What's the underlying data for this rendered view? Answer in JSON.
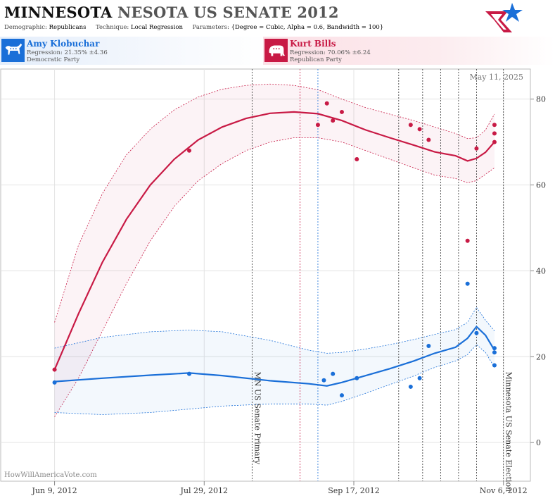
{
  "header": {
    "title_part1": "MINNESOTA",
    "title_part2": "NESOTA US SENATE 2012",
    "demographic_label": "Demographic:",
    "demographic_value": "Republicans",
    "technique_label": "Technique:",
    "technique_value": "Local Regression",
    "parameters_label": "Parameters:",
    "parameters_value": "{Degree = Cubic, Alpha = 0.6, Bandwidth = 100}"
  },
  "candidates": [
    {
      "name": "Amy Klobuchar",
      "regression": "Regression: 21.35% ±4.36",
      "party": "Democratic Party",
      "color": "#1a6fd8",
      "icon": "donkey-icon"
    },
    {
      "name": "Kurt Bills",
      "regression": "Regression: 70.06% ±6.24",
      "party": "Republican Party",
      "color": "#c81a45",
      "icon": "elephant-icon"
    }
  ],
  "watermark": "HowWillAmericaVote.com",
  "chart_data": {
    "type": "line",
    "date_label": "May 11, 2025",
    "x_range": [
      "2012-05-22",
      "2012-11-15"
    ],
    "ylim": [
      -9,
      87
    ],
    "y_ticks": [
      0,
      20,
      40,
      60,
      80
    ],
    "x_ticks": [
      {
        "date": "2012-06-09",
        "label": "Jun 9, 2012"
      },
      {
        "date": "2012-07-29",
        "label": "Jul 29, 2012"
      },
      {
        "date": "2012-09-17",
        "label": "Sep 17, 2012"
      },
      {
        "date": "2012-11-06",
        "label": "Nov 6, 2012"
      }
    ],
    "events": [
      {
        "date": "2012-08-14",
        "label": "MN US Senate Primary",
        "color": "#333333"
      },
      {
        "date": "2012-11-06",
        "label": "Minnesota US Senate Election",
        "color": "#333333"
      }
    ],
    "vlines": [
      {
        "date": "2012-08-30",
        "color": "#c81a45"
      },
      {
        "date": "2012-09-05",
        "color": "#1a6fd8"
      },
      {
        "date": "2012-10-02",
        "color": "#333333"
      },
      {
        "date": "2012-10-10",
        "color": "#333333"
      },
      {
        "date": "2012-10-16",
        "color": "#333333"
      },
      {
        "date": "2012-10-22",
        "color": "#333333"
      },
      {
        "date": "2012-10-28",
        "color": "#333333"
      }
    ],
    "series": [
      {
        "name": "Kurt Bills",
        "color": "#c81a45",
        "points": [
          [
            "2012-06-09",
            17
          ],
          [
            "2012-07-24",
            68
          ],
          [
            "2012-09-05",
            74
          ],
          [
            "2012-09-08",
            79
          ],
          [
            "2012-09-10",
            75
          ],
          [
            "2012-09-13",
            77
          ],
          [
            "2012-09-18",
            66
          ],
          [
            "2012-10-06",
            74
          ],
          [
            "2012-10-09",
            73
          ],
          [
            "2012-10-12",
            70.5
          ],
          [
            "2012-10-25",
            47
          ],
          [
            "2012-10-28",
            68.5
          ],
          [
            "2012-11-03",
            74
          ],
          [
            "2012-11-03",
            72
          ],
          [
            "2012-11-03",
            70
          ]
        ],
        "trend": [
          [
            "2012-06-09",
            17
          ],
          [
            "2012-06-17",
            30
          ],
          [
            "2012-06-25",
            42
          ],
          [
            "2012-07-03",
            52
          ],
          [
            "2012-07-11",
            60
          ],
          [
            "2012-07-19",
            66
          ],
          [
            "2012-07-27",
            70.5
          ],
          [
            "2012-08-04",
            73.5
          ],
          [
            "2012-08-12",
            75.5
          ],
          [
            "2012-08-20",
            76.7
          ],
          [
            "2012-08-28",
            77
          ],
          [
            "2012-09-05",
            76.6
          ],
          [
            "2012-09-13",
            75
          ],
          [
            "2012-09-21",
            72.8
          ],
          [
            "2012-09-29",
            71
          ],
          [
            "2012-10-07",
            69.3
          ],
          [
            "2012-10-14",
            67.7
          ],
          [
            "2012-10-21",
            66.8
          ],
          [
            "2012-10-25",
            65.6
          ],
          [
            "2012-10-28",
            66.2
          ],
          [
            "2012-10-31",
            67.6
          ],
          [
            "2012-11-03",
            70
          ]
        ],
        "upper": [
          [
            "2012-06-09",
            28
          ],
          [
            "2012-06-17",
            46
          ],
          [
            "2012-06-25",
            58
          ],
          [
            "2012-07-03",
            67
          ],
          [
            "2012-07-11",
            73
          ],
          [
            "2012-07-19",
            77.5
          ],
          [
            "2012-07-27",
            80.5
          ],
          [
            "2012-08-04",
            82.3
          ],
          [
            "2012-08-12",
            83.2
          ],
          [
            "2012-08-20",
            83.5
          ],
          [
            "2012-08-28",
            83.2
          ],
          [
            "2012-09-05",
            82.2
          ],
          [
            "2012-09-13",
            80
          ],
          [
            "2012-09-21",
            78
          ],
          [
            "2012-09-29",
            76.5
          ],
          [
            "2012-10-07",
            75
          ],
          [
            "2012-10-14",
            73.5
          ],
          [
            "2012-10-21",
            72
          ],
          [
            "2012-10-25",
            70.8
          ],
          [
            "2012-10-28",
            71
          ],
          [
            "2012-10-31",
            72.8
          ],
          [
            "2012-11-03",
            76.5
          ]
        ],
        "lower": [
          [
            "2012-06-09",
            6
          ],
          [
            "2012-06-17",
            15
          ],
          [
            "2012-06-25",
            26
          ],
          [
            "2012-07-03",
            37
          ],
          [
            "2012-07-11",
            47
          ],
          [
            "2012-07-19",
            55
          ],
          [
            "2012-07-27",
            61
          ],
          [
            "2012-08-04",
            65
          ],
          [
            "2012-08-12",
            68
          ],
          [
            "2012-08-20",
            70
          ],
          [
            "2012-08-28",
            71
          ],
          [
            "2012-09-05",
            71
          ],
          [
            "2012-09-13",
            70
          ],
          [
            "2012-09-21",
            68
          ],
          [
            "2012-09-29",
            66
          ],
          [
            "2012-10-07",
            64
          ],
          [
            "2012-10-14",
            62.3
          ],
          [
            "2012-10-21",
            61.5
          ],
          [
            "2012-10-25",
            60.5
          ],
          [
            "2012-10-28",
            61
          ],
          [
            "2012-10-31",
            62.5
          ],
          [
            "2012-11-03",
            64
          ]
        ]
      },
      {
        "name": "Amy Klobuchar",
        "color": "#1a6fd8",
        "points": [
          [
            "2012-06-09",
            14
          ],
          [
            "2012-07-24",
            16
          ],
          [
            "2012-09-07",
            14.5
          ],
          [
            "2012-09-10",
            16
          ],
          [
            "2012-09-13",
            11
          ],
          [
            "2012-09-18",
            15
          ],
          [
            "2012-10-06",
            13
          ],
          [
            "2012-10-09",
            15
          ],
          [
            "2012-10-12",
            22.5
          ],
          [
            "2012-10-25",
            37
          ],
          [
            "2012-10-28",
            25.5
          ],
          [
            "2012-11-03",
            22
          ],
          [
            "2012-11-03",
            21
          ],
          [
            "2012-11-03",
            18
          ]
        ],
        "trend": [
          [
            "2012-06-09",
            14.2
          ],
          [
            "2012-06-25",
            15
          ],
          [
            "2012-07-11",
            15.7
          ],
          [
            "2012-07-24",
            16.2
          ],
          [
            "2012-08-04",
            15.6
          ],
          [
            "2012-08-20",
            14.4
          ],
          [
            "2012-09-02",
            13.7
          ],
          [
            "2012-09-08",
            13.2
          ],
          [
            "2012-09-13",
            14
          ],
          [
            "2012-09-21",
            15.6
          ],
          [
            "2012-09-29",
            17.2
          ],
          [
            "2012-10-07",
            19
          ],
          [
            "2012-10-14",
            20.8
          ],
          [
            "2012-10-21",
            22.2
          ],
          [
            "2012-10-25",
            24.3
          ],
          [
            "2012-10-28",
            27
          ],
          [
            "2012-10-31",
            25
          ],
          [
            "2012-11-03",
            21.5
          ]
        ],
        "upper": [
          [
            "2012-06-09",
            22
          ],
          [
            "2012-06-25",
            24.5
          ],
          [
            "2012-07-11",
            25.8
          ],
          [
            "2012-07-24",
            26.2
          ],
          [
            "2012-08-04",
            25.8
          ],
          [
            "2012-08-20",
            23.8
          ],
          [
            "2012-09-02",
            21.5
          ],
          [
            "2012-09-08",
            20.8
          ],
          [
            "2012-09-13",
            21
          ],
          [
            "2012-09-21",
            21.8
          ],
          [
            "2012-09-29",
            22.8
          ],
          [
            "2012-10-07",
            24
          ],
          [
            "2012-10-14",
            25.2
          ],
          [
            "2012-10-21",
            26.3
          ],
          [
            "2012-10-25",
            28
          ],
          [
            "2012-10-28",
            31.5
          ],
          [
            "2012-10-31",
            28.5
          ],
          [
            "2012-11-03",
            26
          ]
        ],
        "lower": [
          [
            "2012-06-09",
            7
          ],
          [
            "2012-06-25",
            6.5
          ],
          [
            "2012-07-11",
            7
          ],
          [
            "2012-07-24",
            7.8
          ],
          [
            "2012-08-04",
            8.5
          ],
          [
            "2012-08-20",
            9
          ],
          [
            "2012-09-02",
            9
          ],
          [
            "2012-09-08",
            8.7
          ],
          [
            "2012-09-13",
            9.6
          ],
          [
            "2012-09-21",
            11.5
          ],
          [
            "2012-09-29",
            13.5
          ],
          [
            "2012-10-07",
            15.5
          ],
          [
            "2012-10-14",
            17.5
          ],
          [
            "2012-10-21",
            19
          ],
          [
            "2012-10-25",
            20.5
          ],
          [
            "2012-10-28",
            22.8
          ],
          [
            "2012-10-31",
            21
          ],
          [
            "2012-11-03",
            17.5
          ]
        ]
      }
    ]
  }
}
